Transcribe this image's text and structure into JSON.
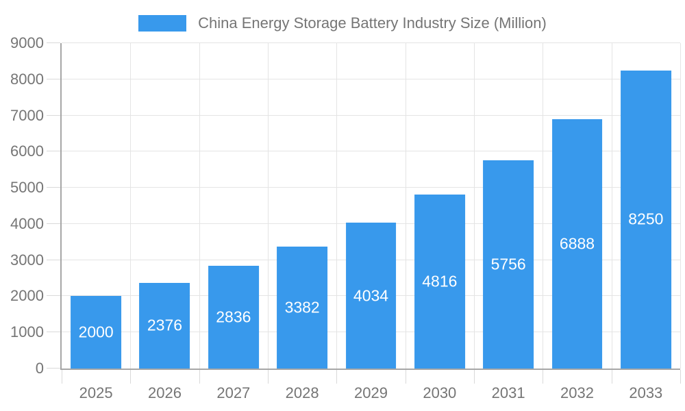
{
  "legend": {
    "label": "China Energy Storage Battery Industry Size (Million)"
  },
  "chart_data": {
    "type": "bar",
    "title": "China Energy Storage Battery Industry Size (Million)",
    "categories": [
      "2025",
      "2026",
      "2027",
      "2028",
      "2029",
      "2030",
      "2031",
      "2032",
      "2033"
    ],
    "values": [
      2000,
      2376,
      2836,
      3382,
      4034,
      4816,
      5756,
      6888,
      8250
    ],
    "series": [
      {
        "name": "China Energy Storage Battery Industry Size (Million)",
        "values": [
          2000,
          2376,
          2836,
          3382,
          4034,
          4816,
          5756,
          6888,
          8250
        ]
      }
    ],
    "xlabel": "",
    "ylabel": "",
    "ylim": [
      0,
      9000
    ],
    "yticks": [
      0,
      1000,
      2000,
      3000,
      4000,
      5000,
      6000,
      7000,
      8000,
      9000
    ],
    "grid": true,
    "value_labels": "inside-center-white",
    "legend_position": "top-center",
    "colors": {
      "bar": "#3899EC",
      "label_text": "#757575",
      "value_label_text": "#FFFFFF",
      "axis_line": "#A6A6A6",
      "gridline": "#E4E4E4",
      "tick": "#D9D9D9",
      "background": "#FFFFFF"
    }
  }
}
